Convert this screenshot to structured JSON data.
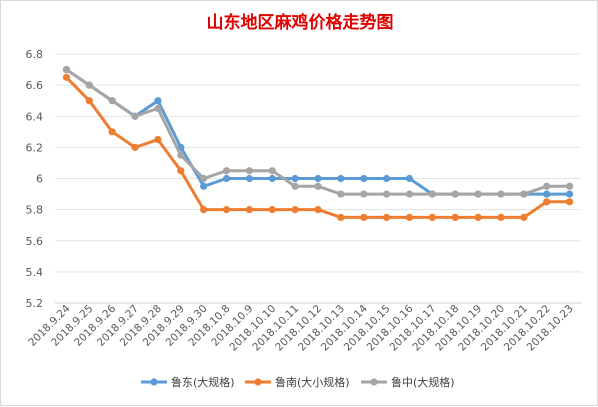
{
  "chart_data": {
    "type": "line",
    "title": "山东地区麻鸡价格走势图",
    "xlabel": "",
    "ylabel": "",
    "categories": [
      "2018.9.24",
      "2018.9.25",
      "2018.9.26",
      "2018.9.27",
      "2018.9.28",
      "2018.9.29",
      "2018.9.30",
      "2018.10.8",
      "2018.10.9",
      "2018.10.10",
      "2018.10.11",
      "2018.10.12",
      "2018.10.13",
      "2018.10.14",
      "2018.10.15",
      "2018.10.16",
      "2018.10.17",
      "2018.10.18",
      "2018.10.19",
      "2018.10.20",
      "2018.10.21",
      "2018.10.22",
      "2018.10.23"
    ],
    "ylim": [
      5.2,
      6.8
    ],
    "yticks": [
      "5.2",
      "5.4",
      "5.6",
      "5.8",
      "6",
      "6.2",
      "6.4",
      "6.6",
      "6.8"
    ],
    "grid": true,
    "legend_position": "bottom",
    "series": [
      {
        "name": "鲁东(大规格)",
        "color": "#5b9bd5",
        "values": [
          6.7,
          6.6,
          6.5,
          6.4,
          6.5,
          6.2,
          5.95,
          6.0,
          6.0,
          6.0,
          6.0,
          6.0,
          6.0,
          6.0,
          6.0,
          6.0,
          5.9,
          5.9,
          5.9,
          5.9,
          5.9,
          5.9,
          5.9
        ]
      },
      {
        "name": "鲁南(大小规格)",
        "color": "#ed7d31",
        "values": [
          6.65,
          6.5,
          6.3,
          6.2,
          6.25,
          6.05,
          5.8,
          5.8,
          5.8,
          5.8,
          5.8,
          5.8,
          5.75,
          5.75,
          5.75,
          5.75,
          5.75,
          5.75,
          5.75,
          5.75,
          5.75,
          5.85,
          5.85
        ]
      },
      {
        "name": "鲁中(大规格)",
        "color": "#a5a5a5",
        "values": [
          6.7,
          6.6,
          6.5,
          6.4,
          6.45,
          6.15,
          6.0,
          6.05,
          6.05,
          6.05,
          5.95,
          5.95,
          5.9,
          5.9,
          5.9,
          5.9,
          5.9,
          5.9,
          5.9,
          5.9,
          5.9,
          5.95,
          5.95
        ]
      }
    ]
  }
}
